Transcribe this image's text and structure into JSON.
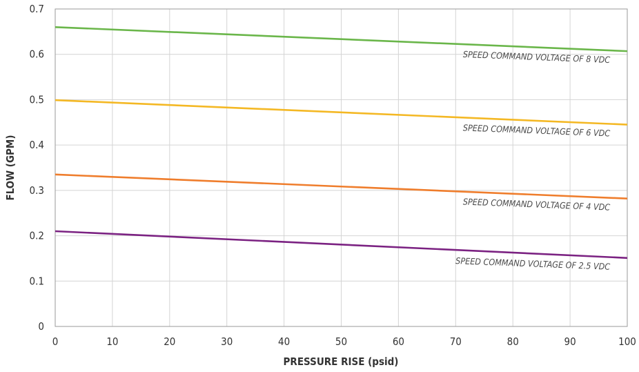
{
  "chart_data": {
    "type": "line",
    "title": "",
    "xlabel": "PRESSURE RISE (psid)",
    "ylabel": "FLOW (GPM)",
    "xlim": [
      0,
      100
    ],
    "ylim": [
      0,
      0.7
    ],
    "xticks": [
      0,
      10,
      20,
      30,
      40,
      50,
      60,
      70,
      80,
      90,
      100
    ],
    "yticks": [
      0,
      0.1,
      0.2,
      0.3,
      0.4,
      0.5,
      0.6,
      0.7
    ],
    "xtick_labels": [
      "0",
      "10",
      "20",
      "30",
      "40",
      "50",
      "60",
      "70",
      "80",
      "90",
      "100"
    ],
    "ytick_labels": [
      "0",
      "0.1",
      "0.2",
      "0.3",
      "0.4",
      "0.5",
      "0.6",
      "0.7"
    ],
    "grid": true,
    "legend": "inline labels",
    "series": [
      {
        "name": "SPEED COMMAND VOLTAGE OF 8 VDC",
        "color": "#6ab64a",
        "x": [
          0,
          100
        ],
        "y": [
          0.66,
          0.607
        ]
      },
      {
        "name": "SPEED COMMAND VOLTAGE OF 6 VDC",
        "color": "#f4b824",
        "x": [
          0,
          100
        ],
        "y": [
          0.499,
          0.445
        ]
      },
      {
        "name": "SPEED COMMAND VOLTAGE OF 4 VDC",
        "color": "#ef7d2c",
        "x": [
          0,
          100
        ],
        "y": [
          0.335,
          0.282
        ]
      },
      {
        "name": "SPEED COMMAND VOLTAGE OF 2.5 VDC",
        "color": "#7b2282",
        "x": [
          0,
          100
        ],
        "y": [
          0.21,
          0.151
        ]
      }
    ]
  }
}
